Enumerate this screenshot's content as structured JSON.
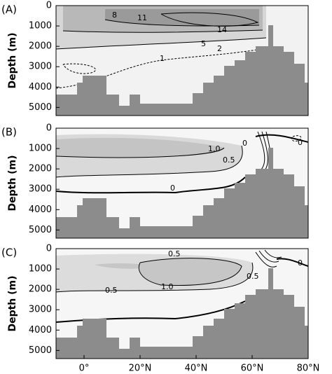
{
  "chart_data": [
    {
      "type": "contour",
      "panel_label": "(A)",
      "y_label": "Depth (m)",
      "ylim": [
        5400,
        0
      ],
      "yticks": [
        0,
        1000,
        2000,
        3000,
        4000,
        5000
      ],
      "xlim": [
        -10,
        80
      ],
      "contour_labels": [
        "8",
        "11",
        "14",
        "5",
        "2",
        "1"
      ]
    },
    {
      "type": "contour",
      "panel_label": "(B)",
      "y_label": "Depth (m)",
      "ylim": [
        5400,
        0
      ],
      "yticks": [
        0,
        1000,
        2000,
        3000,
        4000,
        5000
      ],
      "xlim": [
        -10,
        80
      ],
      "contour_labels": [
        "1.0",
        "0.5",
        "0",
        "0",
        "0"
      ]
    },
    {
      "type": "contour",
      "panel_label": "(C)",
      "y_label": "Depth (m)",
      "ylim": [
        5400,
        0
      ],
      "yticks": [
        0,
        1000,
        2000,
        3000,
        4000,
        5000
      ],
      "xlim": [
        -10,
        80
      ],
      "xticks": [
        {
          "value": 0,
          "label": "0°"
        },
        {
          "value": 20,
          "label": "20°N"
        },
        {
          "value": 40,
          "label": "40°N"
        },
        {
          "value": 60,
          "label": "60°N"
        },
        {
          "value": 80,
          "label": "80°N"
        }
      ],
      "contour_labels": [
        "0.5",
        "0",
        "0.5",
        "1.0",
        "0.5"
      ]
    }
  ]
}
